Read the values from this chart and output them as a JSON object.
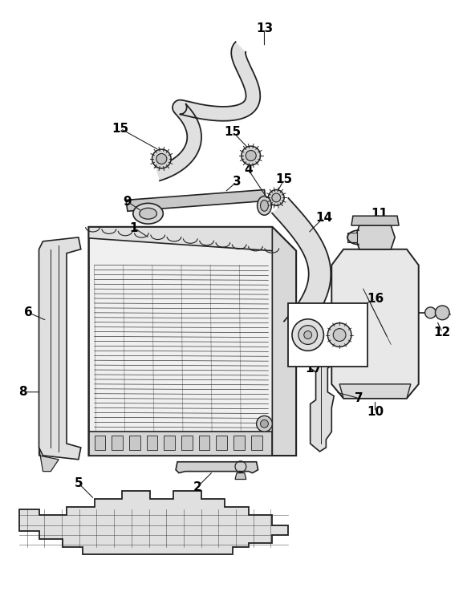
{
  "bg_color": "#ffffff",
  "line_color": "#222222",
  "text_color": "#000000",
  "fig_width": 5.87,
  "fig_height": 7.53,
  "dpi": 100
}
